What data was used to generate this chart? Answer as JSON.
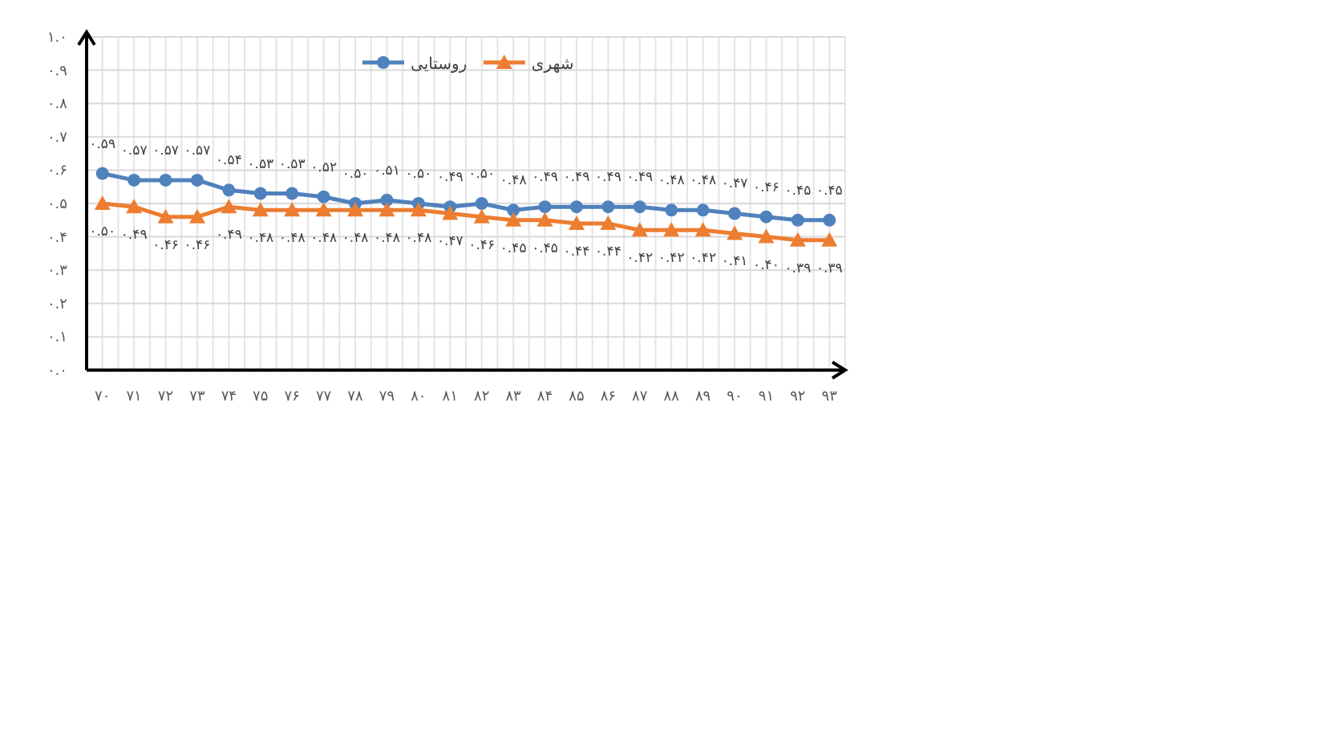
{
  "chart_data": {
    "type": "line",
    "categories": [
      "۷۰",
      "۷۱",
      "۷۲",
      "۷۳",
      "۷۴",
      "۷۵",
      "۷۶",
      "۷۷",
      "۷۸",
      "۷۹",
      "۸۰",
      "۸۱",
      "۸۲",
      "۸۳",
      "۸۴",
      "۸۵",
      "۸۶",
      "۸۷",
      "۸۸",
      "۸۹",
      "۹۰",
      "۹۱",
      "۹۲",
      "۹۳"
    ],
    "series": [
      {
        "name": "روستایی",
        "color": "#4f81bd",
        "marker": "circle",
        "values": [
          0.59,
          0.57,
          0.57,
          0.57,
          0.54,
          0.53,
          0.53,
          0.52,
          0.5,
          0.51,
          0.5,
          0.49,
          0.5,
          0.48,
          0.49,
          0.49,
          0.49,
          0.49,
          0.48,
          0.48,
          0.47,
          0.46,
          0.45,
          0.45
        ],
        "value_labels": [
          "۰.۵۹",
          "۰.۵۷",
          "۰.۵۷",
          "۰.۵۷",
          "۰.۵۴",
          "۰.۵۳",
          "۰.۵۳",
          "۰.۵۲",
          "۰.۵۰",
          "۰.۵۱",
          "۰.۵۰",
          "۰.۴۹",
          "۰.۵۰",
          "۰.۴۸",
          "۰.۴۹",
          "۰.۴۹",
          "۰.۴۹",
          "۰.۴۹",
          "۰.۴۸",
          "۰.۴۸",
          "۰.۴۷",
          "۰.۴۶",
          "۰.۴۵",
          "۰.۴۵"
        ]
      },
      {
        "name": "شهری",
        "color": "#ed7d31",
        "marker": "triangle",
        "values": [
          0.5,
          0.49,
          0.46,
          0.46,
          0.49,
          0.48,
          0.48,
          0.48,
          0.48,
          0.48,
          0.48,
          0.47,
          0.46,
          0.45,
          0.45,
          0.44,
          0.44,
          0.42,
          0.42,
          0.42,
          0.41,
          0.4,
          0.39,
          0.39
        ],
        "value_labels": [
          "۰.۵۰",
          "۰.۴۹",
          "۰.۴۶",
          "۰.۴۶",
          "۰.۴۹",
          "۰.۴۸",
          "۰.۴۸",
          "۰.۴۸",
          "۰.۴۸",
          "۰.۴۸",
          "۰.۴۸",
          "۰.۴۷",
          "۰.۴۶",
          "۰.۴۵",
          "۰.۴۵",
          "۰.۴۴",
          "۰.۴۴",
          "۰.۴۲",
          "۰.۴۲",
          "۰.۴۲",
          "۰.۴۱",
          "۰.۴۰",
          "۰.۳۹",
          "۰.۳۹"
        ]
      }
    ],
    "ylim": [
      0,
      1
    ],
    "yticks": [
      {
        "value": 0,
        "label": "۰.۰"
      },
      {
        "value": 0.1,
        "label": "۰.۱"
      },
      {
        "value": 0.2,
        "label": "۰.۲"
      },
      {
        "value": 0.3,
        "label": "۰.۳"
      },
      {
        "value": 0.4,
        "label": "۰.۴"
      },
      {
        "value": 0.5,
        "label": "۰.۵"
      },
      {
        "value": 0.6,
        "label": "۰.۶"
      },
      {
        "value": 0.7,
        "label": "۰.۷"
      },
      {
        "value": 0.8,
        "label": "۰.۸"
      },
      {
        "value": 0.9,
        "label": "۰.۹"
      },
      {
        "value": 1,
        "label": "۱.۰"
      }
    ],
    "grid": true,
    "legend": "top",
    "line_style": "solid"
  }
}
